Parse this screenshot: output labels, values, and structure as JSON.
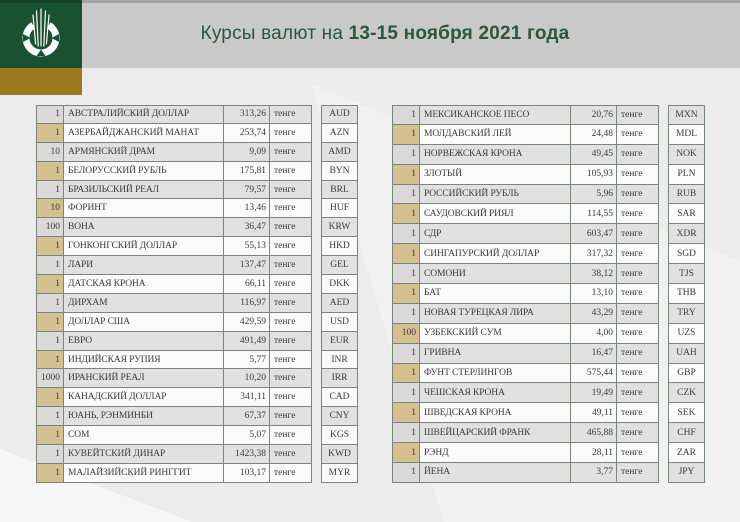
{
  "header": {
    "title_regular": "Курсы валют на ",
    "title_bold": "13-15 ноября 2021 года",
    "logo_icon": "national-bank-wheat-emblem"
  },
  "colors": {
    "logo_green": "#1a5130",
    "gold_accent": "#9d791e",
    "header_grey": "#c9c9c9",
    "title_green": "#27593c",
    "row_grey": "#e1e1e1",
    "row_white": "#fafafa",
    "qty_tan": "#d5c08f",
    "table_border": "#77877b",
    "page_bg": "#ececec"
  },
  "tables": {
    "left": {
      "rows": [
        {
          "qty": "1",
          "name": "АВСТРАЛИЙСКИЙ ДОЛЛАР",
          "rate": "313,26",
          "unit": "тенге",
          "code": "AUD"
        },
        {
          "qty": "1",
          "name": "АЗЕРБАЙДЖАНСКИЙ МАНАТ",
          "rate": "253,74",
          "unit": "тенге",
          "code": "AZN"
        },
        {
          "qty": "10",
          "name": "АРМЯНСКИЙ ДРАМ",
          "rate": "9,09",
          "unit": "тенге",
          "code": "AMD"
        },
        {
          "qty": "1",
          "name": "БЕЛОРУССКИЙ РУБЛЬ",
          "rate": "175,81",
          "unit": "тенге",
          "code": "BYN"
        },
        {
          "qty": "1",
          "name": "БРАЗИЛЬСКИЙ РЕАЛ",
          "rate": "79,57",
          "unit": "тенге",
          "code": "BRL"
        },
        {
          "qty": "10",
          "name": "ФОРИНТ",
          "rate": "13,46",
          "unit": "тенге",
          "code": "HUF"
        },
        {
          "qty": "100",
          "name": "ВОНА",
          "rate": "36,47",
          "unit": "тенге",
          "code": "KRW"
        },
        {
          "qty": "1",
          "name": "ГОНКОНГСКИЙ ДОЛЛАР",
          "rate": "55,13",
          "unit": "тенге",
          "code": "HKD"
        },
        {
          "qty": "1",
          "name": "ЛАРИ",
          "rate": "137,47",
          "unit": "тенге",
          "code": "GEL"
        },
        {
          "qty": "1",
          "name": "ДАТСКАЯ КРОНА",
          "rate": "66,11",
          "unit": "тенге",
          "code": "DKK"
        },
        {
          "qty": "1",
          "name": "ДИРХАМ",
          "rate": "116,97",
          "unit": "тенге",
          "code": "AED"
        },
        {
          "qty": "1",
          "name": "ДОЛЛАР США",
          "rate": "429,59",
          "unit": "тенге",
          "code": "USD"
        },
        {
          "qty": "1",
          "name": "ЕВРО",
          "rate": "491,49",
          "unit": "тенге",
          "code": "EUR"
        },
        {
          "qty": "1",
          "name": "ИНДИЙСКАЯ РУПИЯ",
          "rate": "5,77",
          "unit": "тенге",
          "code": "INR"
        },
        {
          "qty": "1000",
          "name": "ИРАНСКИЙ РЕАЛ",
          "rate": "10,20",
          "unit": "тенге",
          "code": "IRR"
        },
        {
          "qty": "1",
          "name": "КАНАДСКИЙ ДОЛЛАР",
          "rate": "341,11",
          "unit": "тенге",
          "code": "CAD"
        },
        {
          "qty": "1",
          "name": "ЮАНЬ, РЭНМИНБИ",
          "rate": "67,37",
          "unit": "тенге",
          "code": "CNY"
        },
        {
          "qty": "1",
          "name": "СОМ",
          "rate": "5,07",
          "unit": "тенге",
          "code": "KGS"
        },
        {
          "qty": "1",
          "name": "КУВЕЙТСКИЙ ДИНАР",
          "rate": "1423,38",
          "unit": "тенге",
          "code": "KWD"
        },
        {
          "qty": "1",
          "name": "МАЛАЙЗИЙСКИЙ РИНГГИТ",
          "rate": "103,17",
          "unit": "тенге",
          "code": "MYR"
        }
      ]
    },
    "right": {
      "rows": [
        {
          "qty": "1",
          "name": "МЕКСИКАНСКОЕ ПЕСО",
          "rate": "20,76",
          "unit": "тенге",
          "code": "MXN"
        },
        {
          "qty": "1",
          "name": "МОЛДАВСКИЙ ЛЕЙ",
          "rate": "24,48",
          "unit": "тенге",
          "code": "MDL"
        },
        {
          "qty": "1",
          "name": "НОРВЕЖСКАЯ КРОНА",
          "rate": "49,45",
          "unit": "тенге",
          "code": "NOK"
        },
        {
          "qty": "1",
          "name": "ЗЛОТЫЙ",
          "rate": "105,93",
          "unit": "тенге",
          "code": "PLN"
        },
        {
          "qty": "1",
          "name": "РОССИЙСКИЙ РУБЛЬ",
          "rate": "5,96",
          "unit": "тенге",
          "code": "RUB"
        },
        {
          "qty": "1",
          "name": "САУДОВСКИЙ РИЯЛ",
          "rate": "114,55",
          "unit": "тенге",
          "code": "SAR"
        },
        {
          "qty": "1",
          "name": "СДР",
          "rate": "603,47",
          "unit": "тенге",
          "code": "XDR"
        },
        {
          "qty": "1",
          "name": "СИНГАПУРСКИЙ ДОЛЛАР",
          "rate": "317,32",
          "unit": "тенге",
          "code": "SGD"
        },
        {
          "qty": "1",
          "name": "СОМОНИ",
          "rate": "38,12",
          "unit": "тенге",
          "code": "TJS"
        },
        {
          "qty": "1",
          "name": "БАТ",
          "rate": "13,10",
          "unit": "тенге",
          "code": "THB"
        },
        {
          "qty": "1",
          "name": "НОВАЯ ТУРЕЦКАЯ ЛИРА",
          "rate": "43,29",
          "unit": "тенге",
          "code": "TRY"
        },
        {
          "qty": "100",
          "name": "УЗБЕКСКИЙ СУМ",
          "rate": "4,00",
          "unit": "тенге",
          "code": "UZS"
        },
        {
          "qty": "1",
          "name": "ГРИВНА",
          "rate": "16,47",
          "unit": "тенге",
          "code": "UAH"
        },
        {
          "qty": "1",
          "name": "ФУНТ СТЕРЛИНГОВ",
          "rate": "575,44",
          "unit": "тенге",
          "code": "GBP"
        },
        {
          "qty": "1",
          "name": "ЧЕШСКАЯ КРОНА",
          "rate": "19,49",
          "unit": "тенге",
          "code": "CZK"
        },
        {
          "qty": "1",
          "name": "ШВЕДСКАЯ КРОНА",
          "rate": "49,11",
          "unit": "тенге",
          "code": "SEK"
        },
        {
          "qty": "1",
          "name": "ШВЕЙЦАРСКИЙ ФРАНК",
          "rate": "465,88",
          "unit": "тенге",
          "code": "CHF"
        },
        {
          "qty": "1",
          "name": "РЭНД",
          "rate": "28,11",
          "unit": "тенге",
          "code": "ZAR"
        },
        {
          "qty": "1",
          "name": "ЙЕНА",
          "rate": "3,77",
          "unit": "тенге",
          "code": "JPY"
        }
      ]
    }
  }
}
